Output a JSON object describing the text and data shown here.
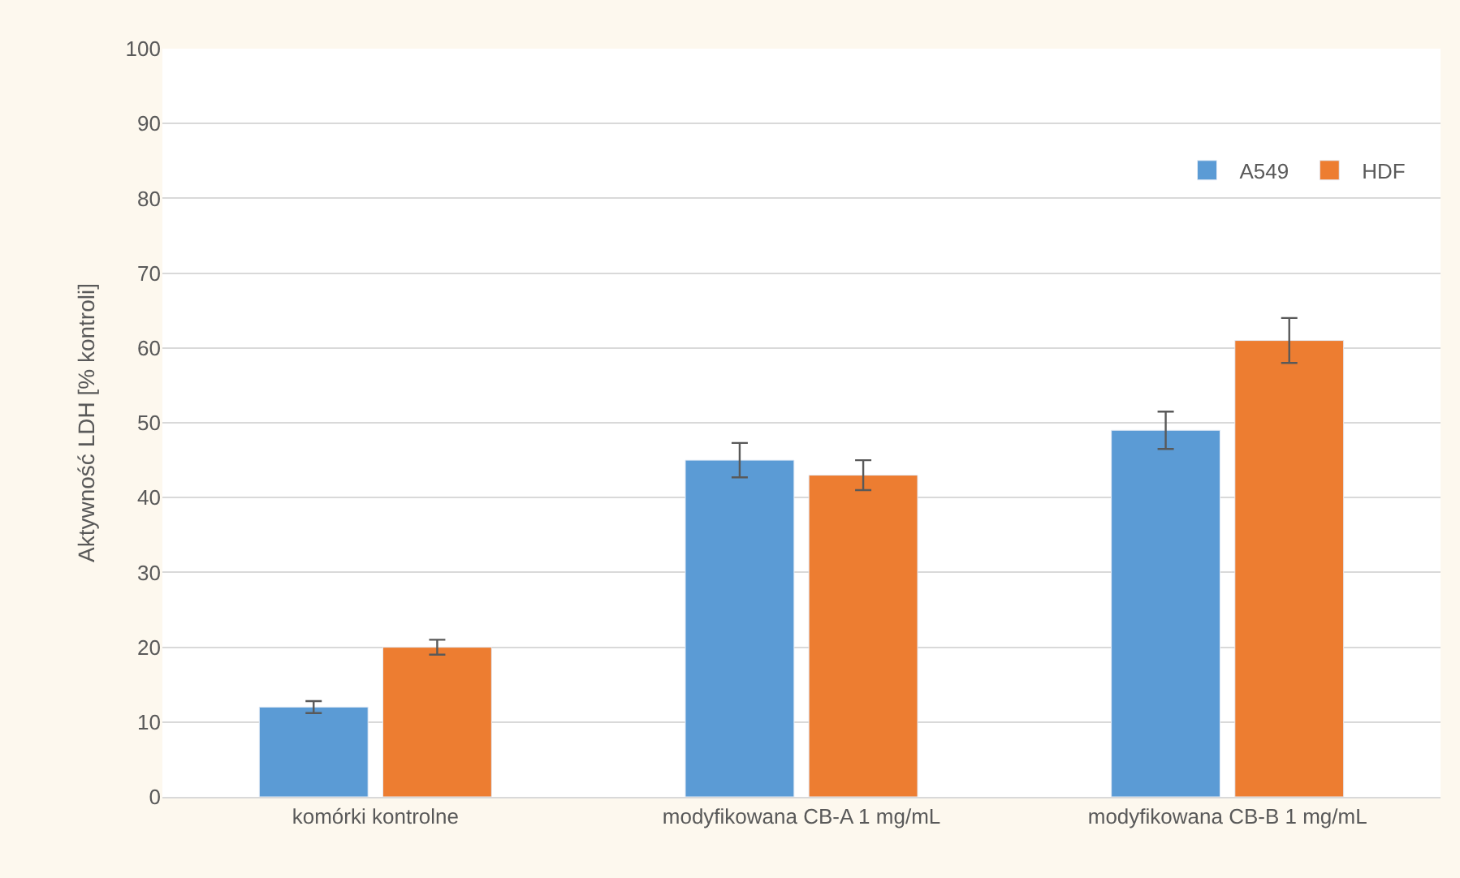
{
  "chart_data": {
    "type": "bar",
    "ylabel": "Aktywność LDH [% kontroli]",
    "categories": [
      "komórki kontrolne",
      "modyfikowana CB-A 1 mg/mL",
      "modyfikowana CB-B 1 mg/mL"
    ],
    "series": [
      {
        "name": "A549",
        "color": "#5b9bd5",
        "values": [
          12,
          45,
          49
        ],
        "errors": [
          0.8,
          2.3,
          2.5
        ]
      },
      {
        "name": "HDF",
        "color": "#ed7d31",
        "values": [
          20,
          43,
          61
        ],
        "errors": [
          1,
          2,
          3
        ]
      }
    ],
    "ylim": [
      0,
      100
    ],
    "yticks": [
      0,
      10,
      20,
      30,
      40,
      50,
      60,
      70,
      80,
      90,
      100
    ],
    "grid": "y",
    "legend": "top right"
  }
}
